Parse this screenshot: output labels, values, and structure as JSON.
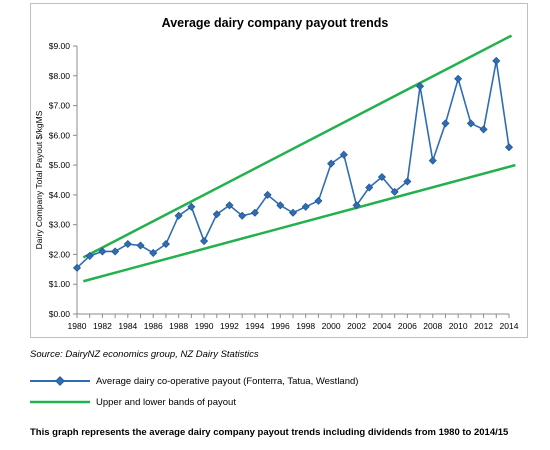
{
  "chart_data": {
    "type": "line",
    "title": "Average dairy company payout trends",
    "xlabel": "",
    "ylabel": "Dairy Company Total Payout $/kgMS",
    "xlim": [
      1980,
      2014
    ],
    "ylim": [
      0,
      9
    ],
    "x_ticks": [
      1980,
      1982,
      1984,
      1986,
      1988,
      1990,
      1992,
      1994,
      1996,
      1998,
      2000,
      2002,
      2004,
      2006,
      2008,
      2010,
      2012,
      2014
    ],
    "y_ticks": [
      {
        "value": 0,
        "label": "$0.00"
      },
      {
        "value": 1,
        "label": "$1.00"
      },
      {
        "value": 2,
        "label": "$2.00"
      },
      {
        "value": 3,
        "label": "$3.00"
      },
      {
        "value": 4,
        "label": "$4.00"
      },
      {
        "value": 5,
        "label": "$5.00"
      },
      {
        "value": 6,
        "label": "$6.00"
      },
      {
        "value": 7,
        "label": "$7.00"
      },
      {
        "value": 8,
        "label": "$8.00"
      },
      {
        "value": 9,
        "label": "$9.00"
      }
    ],
    "grid": false,
    "series": [
      {
        "name": "Average dairy co-operative payout (Fonterra, Tatua, Westland)",
        "color": "#2e6db4",
        "marker": "diamond",
        "x": [
          1980,
          1981,
          1982,
          1983,
          1984,
          1985,
          1986,
          1987,
          1988,
          1989,
          1990,
          1991,
          1992,
          1993,
          1994,
          1995,
          1996,
          1997,
          1998,
          1999,
          2000,
          2001,
          2002,
          2003,
          2004,
          2005,
          2006,
          2007,
          2008,
          2009,
          2010,
          2011,
          2012,
          2013,
          2014
        ],
        "values": [
          1.55,
          1.95,
          2.1,
          2.1,
          2.35,
          2.3,
          2.05,
          2.35,
          3.3,
          3.6,
          2.45,
          3.35,
          3.65,
          3.3,
          3.4,
          4.0,
          3.65,
          3.4,
          3.6,
          3.8,
          5.05,
          5.35,
          3.65,
          4.25,
          4.6,
          4.1,
          4.45,
          7.65,
          5.15,
          6.4,
          7.9,
          6.4,
          6.2,
          8.5,
          5.6
        ]
      }
    ],
    "bands": {
      "name": "Upper and lower bands of payout",
      "color": "#22b14c",
      "lines": [
        {
          "x": [
            1980.5,
            2014.2
          ],
          "values": [
            1.9,
            9.35
          ]
        },
        {
          "x": [
            1980.5,
            2014.5
          ],
          "values": [
            1.1,
            5.0
          ]
        }
      ]
    }
  },
  "source": "Source: DairyNZ economics group, NZ Dairy Statistics",
  "legend": {
    "series_label": "Average dairy co-operative payout (Fonterra, Tatua, Westland)",
    "bands_label": "Upper and lower bands of payout"
  },
  "caption": "This graph represents the average dairy company payout trends including dividends from 1980 to 2014/15"
}
